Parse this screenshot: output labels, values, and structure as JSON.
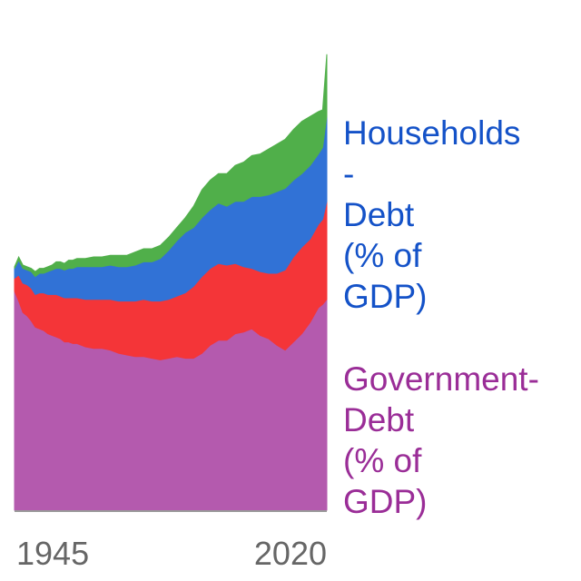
{
  "chart_data": {
    "type": "area",
    "stacked": true,
    "x_ticks": [
      "1945",
      "2020"
    ],
    "xlim": [
      1945,
      2020
    ],
    "x": [
      1945,
      1946,
      1947,
      1948,
      1949,
      1950,
      1951,
      1952,
      1953,
      1954,
      1955,
      1956,
      1957,
      1958,
      1959,
      1960,
      1962,
      1964,
      1966,
      1968,
      1970,
      1972,
      1974,
      1976,
      1978,
      1980,
      1982,
      1984,
      1986,
      1988,
      1990,
      1992,
      1994,
      1996,
      1998,
      2000,
      2002,
      2004,
      2006,
      2008,
      2010,
      2012,
      2014,
      2016,
      2018,
      2019,
      2020
    ],
    "series": [
      {
        "name": "Government-\nDebt\n(% of\nGDP)",
        "color": "#b45aae",
        "values": [
          34,
          28,
          21,
          19,
          16,
          12,
          11,
          10,
          8,
          7,
          6,
          5,
          3,
          3,
          2,
          2,
          0,
          -1,
          -1,
          -2,
          -4,
          -5,
          -6,
          -6,
          -7,
          -8,
          -7,
          -6,
          -7,
          -7,
          -4,
          1,
          4,
          4,
          8,
          9,
          11,
          7,
          5,
          1,
          -2,
          3,
          8,
          15,
          24,
          26,
          29
        ]
      },
      {
        "name": "",
        "color": "#f43538",
        "values": [
          8,
          16,
          18,
          19,
          20,
          20,
          22,
          23,
          24,
          25,
          26,
          26,
          27,
          27,
          28,
          28,
          29,
          30,
          30,
          31,
          32,
          33,
          34,
          35,
          35,
          36,
          36,
          37,
          40,
          44,
          47,
          47,
          47,
          46,
          43,
          40,
          37,
          39,
          40,
          44,
          49,
          52,
          53,
          51,
          51,
          52,
          60
        ]
      },
      {
        "name": "",
        "color": "#3172d6",
        "values": [
          6,
          9,
          9,
          9,
          10,
          11,
          12,
          12,
          14,
          15,
          16,
          17,
          17,
          18,
          18,
          19,
          20,
          20,
          20,
          21,
          21,
          21,
          22,
          23,
          24,
          26,
          30,
          34,
          37,
          36,
          36,
          36,
          37,
          36,
          38,
          40,
          44,
          46,
          48,
          50,
          50,
          47,
          45,
          45,
          43,
          44,
          52
        ]
      },
      {
        "name": "Households\n-\nDebt\n(% of\nGDP)",
        "color": "#50af4a",
        "values": [
          1,
          2,
          2,
          2,
          2,
          3,
          3,
          3,
          3,
          3,
          4,
          4,
          4,
          5,
          5,
          5,
          5,
          6,
          6,
          6,
          7,
          7,
          8,
          8,
          8,
          8,
          8,
          8,
          9,
          13,
          17,
          18,
          18,
          20,
          22,
          24,
          25,
          26,
          28,
          29,
          30,
          31,
          32,
          30,
          26,
          23,
          38
        ]
      }
    ]
  }
}
